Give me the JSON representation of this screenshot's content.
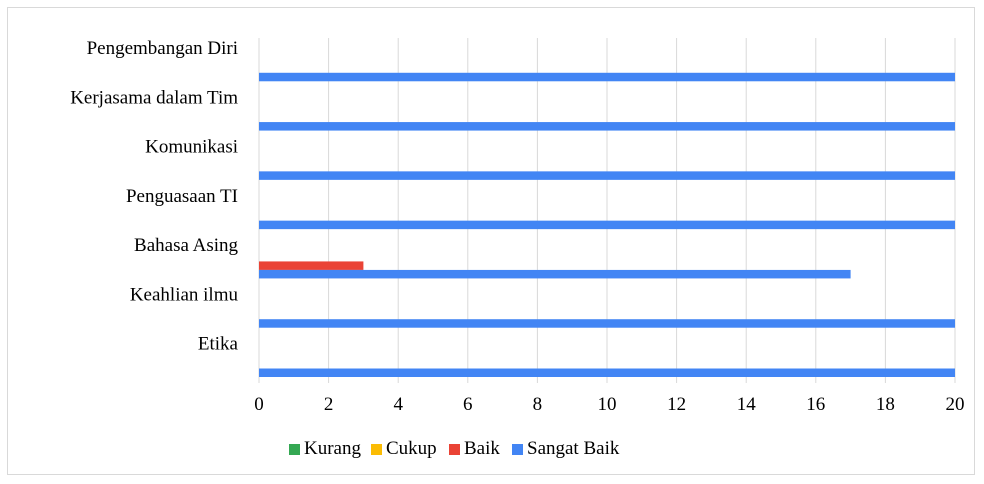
{
  "chart_data": {
    "type": "bar",
    "orientation": "horizontal",
    "categories": [
      "Etika",
      "Keahlian ilmu",
      "Bahasa Asing",
      "Penguasaan TI",
      "Komunikasi",
      "Kerjasama dalam Tim",
      "Pengembangan Diri"
    ],
    "series": [
      {
        "name": "Kurang",
        "color": "#34a853",
        "values": [
          0,
          0,
          0,
          0,
          0,
          0,
          0
        ]
      },
      {
        "name": "Cukup",
        "color": "#fbbc04",
        "values": [
          0,
          0,
          0,
          0,
          0,
          0,
          0
        ]
      },
      {
        "name": "Baik",
        "color": "#ea4335",
        "values": [
          0,
          0,
          3,
          0,
          0,
          0,
          0
        ]
      },
      {
        "name": "Sangat Baik",
        "color": "#4285f4",
        "values": [
          20,
          20,
          17,
          20,
          20,
          20,
          20
        ]
      }
    ],
    "xlim": [
      0,
      20
    ],
    "xticks": [
      "0",
      "2",
      "4",
      "6",
      "8",
      "10",
      "12",
      "14",
      "16",
      "18",
      "20"
    ],
    "grid": true,
    "legend_position": "bottom"
  }
}
